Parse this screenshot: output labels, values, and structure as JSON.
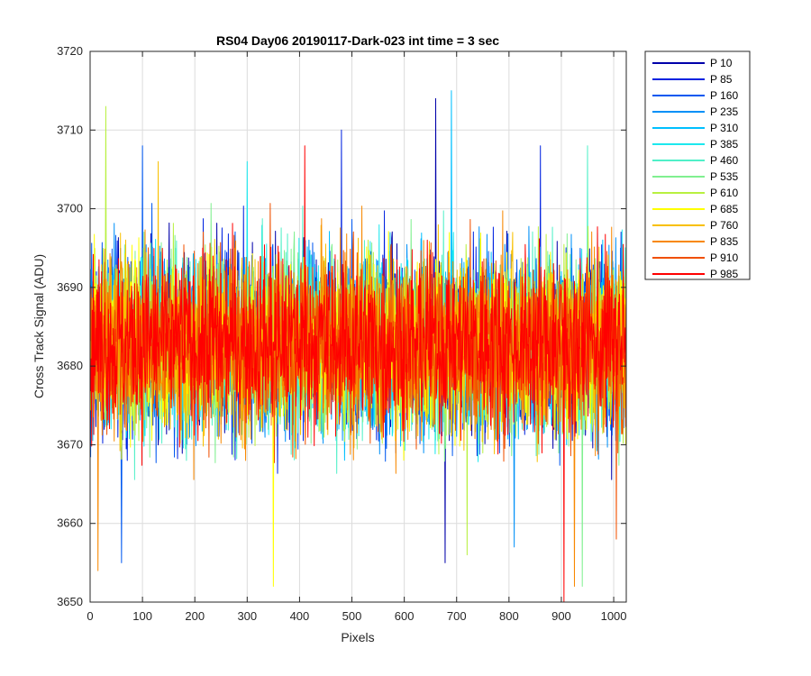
{
  "chart_data": {
    "type": "line",
    "title": "RS04 Day06 20190117-Dark-023 int time = 3 sec",
    "xlabel": "Pixels",
    "ylabel": "Cross Track Signal (ADU)",
    "xlim": [
      0,
      1024
    ],
    "ylim": [
      3650,
      3720
    ],
    "xticks": [
      0,
      100,
      200,
      300,
      400,
      500,
      600,
      700,
      800,
      900,
      1000
    ],
    "yticks": [
      3650,
      3660,
      3670,
      3680,
      3690,
      3700,
      3710,
      3720
    ],
    "grid": true,
    "legend_position": "outside-right",
    "n_points": 1024,
    "series": [
      {
        "name": "P 10",
        "color": "#0000AA",
        "mean": 3683,
        "spread": 5.5,
        "extremes": [
          {
            "x": 660,
            "y": 3714
          },
          {
            "x": 678,
            "y": 3655
          }
        ]
      },
      {
        "name": "P 85",
        "color": "#0022E0",
        "mean": 3683,
        "spread": 5.5,
        "extremes": [
          {
            "x": 480,
            "y": 3710
          },
          {
            "x": 860,
            "y": 3708
          }
        ]
      },
      {
        "name": "P 160",
        "color": "#0058F0",
        "mean": 3683,
        "spread": 5.5,
        "extremes": [
          {
            "x": 100,
            "y": 3708
          },
          {
            "x": 60,
            "y": 3655
          }
        ]
      },
      {
        "name": "P 235",
        "color": "#0090F8",
        "mean": 3683,
        "spread": 5.5,
        "extremes": [
          {
            "x": 810,
            "y": 3657
          }
        ]
      },
      {
        "name": "P 310",
        "color": "#00C0FF",
        "mean": 3683,
        "spread": 5.5,
        "extremes": [
          {
            "x": 690,
            "y": 3715
          }
        ]
      },
      {
        "name": "P 385",
        "color": "#1CE8EE",
        "mean": 3683,
        "spread": 5.5,
        "extremes": [
          {
            "x": 300,
            "y": 3706
          }
        ]
      },
      {
        "name": "P 460",
        "color": "#50F0C8",
        "mean": 3683,
        "spread": 5.5,
        "extremes": [
          {
            "x": 950,
            "y": 3708
          }
        ]
      },
      {
        "name": "P 535",
        "color": "#80F090",
        "mean": 3683,
        "spread": 5.5,
        "extremes": [
          {
            "x": 940,
            "y": 3652
          }
        ]
      },
      {
        "name": "P 610",
        "color": "#B8F040",
        "mean": 3683,
        "spread": 5.5,
        "extremes": [
          {
            "x": 30,
            "y": 3713
          },
          {
            "x": 720,
            "y": 3656
          }
        ]
      },
      {
        "name": "P 685",
        "color": "#FFFF00",
        "mean": 3683,
        "spread": 5.5,
        "extremes": [
          {
            "x": 350,
            "y": 3652
          }
        ]
      },
      {
        "name": "P 760",
        "color": "#F8C000",
        "mean": 3683,
        "spread": 5.5,
        "extremes": [
          {
            "x": 130,
            "y": 3706
          }
        ]
      },
      {
        "name": "P 835",
        "color": "#F88800",
        "mean": 3683,
        "spread": 5.5,
        "extremes": [
          {
            "x": 15,
            "y": 3654
          },
          {
            "x": 925,
            "y": 3652
          }
        ]
      },
      {
        "name": "P 910",
        "color": "#F05000",
        "mean": 3683,
        "spread": 5.5,
        "extremes": [
          {
            "x": 1005,
            "y": 3658
          }
        ]
      },
      {
        "name": "P 985",
        "color": "#FF0000",
        "mean": 3683,
        "spread": 5.5,
        "extremes": [
          {
            "x": 410,
            "y": 3708
          },
          {
            "x": 905,
            "y": 3650
          }
        ]
      }
    ]
  }
}
